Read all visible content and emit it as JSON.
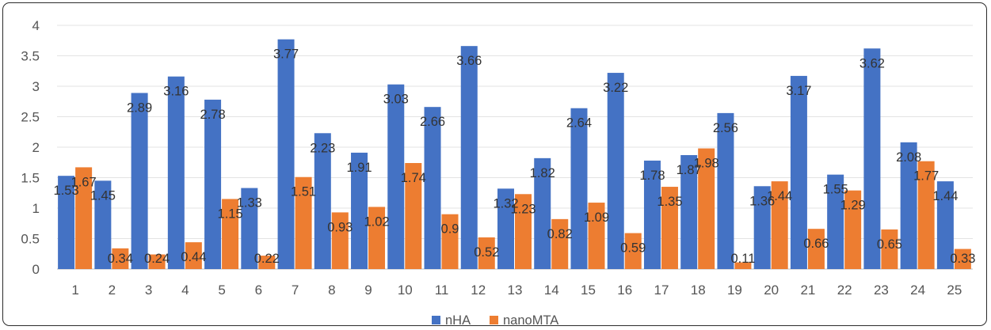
{
  "chart_data": {
    "type": "bar",
    "categories": [
      "1",
      "2",
      "3",
      "4",
      "5",
      "6",
      "7",
      "8",
      "9",
      "10",
      "11",
      "12",
      "13",
      "14",
      "15",
      "16",
      "17",
      "18",
      "19",
      "20",
      "21",
      "22",
      "23",
      "24",
      "25"
    ],
    "series": [
      {
        "name": "nHA",
        "color": "#4472C4",
        "values": [
          1.53,
          1.45,
          2.89,
          3.16,
          2.78,
          1.33,
          3.77,
          2.23,
          1.91,
          3.03,
          2.66,
          3.66,
          1.32,
          1.82,
          2.64,
          3.22,
          1.78,
          1.87,
          2.56,
          1.36,
          3.17,
          1.55,
          3.62,
          2.08,
          1.44
        ]
      },
      {
        "name": "nanoMTA",
        "color": "#ED7D31",
        "values": [
          1.67,
          0.34,
          0.24,
          0.44,
          1.15,
          0.22,
          1.51,
          0.93,
          1.02,
          1.74,
          0.9,
          0.52,
          1.23,
          0.82,
          1.09,
          0.59,
          1.35,
          1.98,
          0.11,
          1.44,
          0.66,
          1.29,
          0.65,
          1.77,
          0.33
        ]
      }
    ],
    "y_ticks": [
      "0",
      "0.5",
      "1",
      "1.5",
      "2",
      "2.5",
      "3",
      "3.5",
      "4"
    ],
    "ylim": [
      0,
      4
    ],
    "grid": true,
    "legend_position": "bottom",
    "data_labels": true
  }
}
